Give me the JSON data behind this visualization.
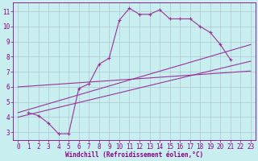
{
  "bg_color": "#c8eef0",
  "line_color": "#993399",
  "xlabel": "Windchill (Refroidissement éolien,°C)",
  "xlim": [
    -0.5,
    23.5
  ],
  "ylim": [
    2.5,
    11.6
  ],
  "xticks": [
    0,
    1,
    2,
    3,
    4,
    5,
    6,
    7,
    8,
    9,
    10,
    11,
    12,
    13,
    14,
    15,
    16,
    17,
    18,
    19,
    20,
    21,
    22,
    23
  ],
  "yticks": [
    3,
    4,
    5,
    6,
    7,
    8,
    9,
    10,
    11
  ],
  "series": [
    {
      "x": [
        1,
        2,
        3,
        4,
        5,
        6,
        7,
        8,
        9,
        10,
        11,
        12,
        13,
        14,
        15,
        16,
        17,
        18,
        19,
        20,
        21
      ],
      "y": [
        4.3,
        4.1,
        3.6,
        2.9,
        2.9,
        5.9,
        6.2,
        7.5,
        7.9,
        10.4,
        11.2,
        10.8,
        10.8,
        11.1,
        10.5,
        10.5,
        10.5,
        10.0,
        9.6,
        8.8,
        7.8
      ],
      "marker": true
    },
    {
      "x": [
        0,
        23
      ],
      "y": [
        6.0,
        7.05
      ],
      "marker": false
    },
    {
      "x": [
        0,
        23
      ],
      "y": [
        4.3,
        8.8
      ],
      "marker": false
    },
    {
      "x": [
        0,
        23
      ],
      "y": [
        4.0,
        7.7
      ],
      "marker": false
    }
  ],
  "tick_fontsize": 5.5,
  "xlabel_fontsize": 5.5,
  "tick_color": "#880088",
  "spine_color": "#880088"
}
